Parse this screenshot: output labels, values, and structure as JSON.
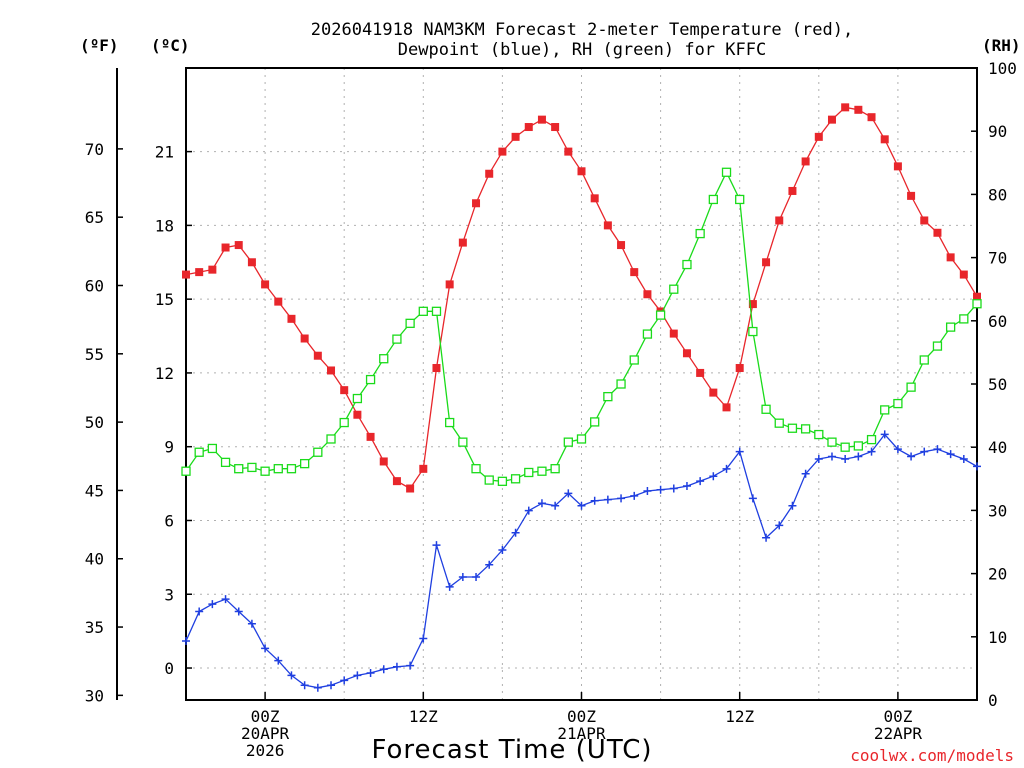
{
  "chart_data": {
    "type": "line",
    "title": "2026041918 NAM3KM Forecast 2-meter Temperature (red), Dewpoint (blue), RH (green) for KFFC",
    "title_lines": [
      "2026041918 NAM3KM Forecast 2-meter Temperature (red),",
      "Dewpoint (blue), RH (green) for KFFC"
    ],
    "xlabel": "Forecast Time (UTC)",
    "credit": "coolwx.com/models",
    "units": {
      "fahrenheit": "(ºF)",
      "celsius": "(ºC)",
      "rh": "(RH)"
    },
    "x_unit": "forecast hour (0 = 2026041918 UTC)",
    "xlim": [
      0,
      60
    ],
    "x_ticks": [
      {
        "x": 6,
        "lines": [
          "00Z",
          "20APR",
          "2026"
        ]
      },
      {
        "x": 18,
        "lines": [
          "12Z"
        ]
      },
      {
        "x": 30,
        "lines": [
          "00Z",
          "21APR"
        ]
      },
      {
        "x": 42,
        "lines": [
          "12Z"
        ]
      },
      {
        "x": 54,
        "lines": [
          "00Z",
          "22APR"
        ]
      }
    ],
    "x_grid": [
      6,
      12,
      18,
      24,
      30,
      36,
      42,
      48,
      54
    ],
    "celsius_axis": {
      "min": -1.3,
      "max": 24.4,
      "ticks": [
        0,
        3,
        6,
        9,
        12,
        15,
        18,
        21
      ]
    },
    "fahrenheit_axis": {
      "ticks": [
        30,
        35,
        40,
        45,
        50,
        55,
        60,
        65,
        70
      ]
    },
    "rh_axis": {
      "min": 0,
      "max": 100,
      "ticks": [
        0,
        10,
        20,
        30,
        40,
        50,
        60,
        70,
        80,
        90,
        100
      ]
    },
    "grid": true,
    "series": [
      {
        "name": "2-meter Temperature",
        "axis": "celsius",
        "color": "#e8262b",
        "marker": "filled-square",
        "x": [
          0,
          1,
          2,
          3,
          4,
          5,
          6,
          7,
          8,
          9,
          10,
          11,
          12,
          13,
          14,
          15,
          16,
          17,
          18,
          19,
          20,
          21,
          22,
          23,
          24,
          25,
          26,
          27,
          28,
          29,
          30,
          31,
          32,
          33,
          34,
          35,
          36,
          37,
          38,
          39,
          40,
          41,
          42,
          43,
          44,
          45,
          46,
          47,
          48,
          49,
          50,
          51,
          52,
          53,
          54,
          55,
          56,
          57,
          58,
          59,
          60
        ],
        "values": [
          16.0,
          16.1,
          16.2,
          17.1,
          17.2,
          16.5,
          15.6,
          14.9,
          14.2,
          13.4,
          12.7,
          12.1,
          11.3,
          10.3,
          9.4,
          8.4,
          7.6,
          7.3,
          8.1,
          12.2,
          15.6,
          17.3,
          18.9,
          20.1,
          21.0,
          21.6,
          22.0,
          22.3,
          22.0,
          21.0,
          20.2,
          19.1,
          18.0,
          17.2,
          16.1,
          15.2,
          14.5,
          13.6,
          12.8,
          12.0,
          11.2,
          10.6,
          12.2,
          14.8,
          16.5,
          18.2,
          19.4,
          20.6,
          21.6,
          22.3,
          22.8,
          22.7,
          22.4,
          21.5,
          20.4,
          19.2,
          18.2,
          17.7,
          16.7,
          16.0,
          15.1
        ]
      },
      {
        "name": "Dewpoint",
        "axis": "celsius",
        "color": "#1f3fe0",
        "marker": "plus",
        "x": [
          0,
          1,
          2,
          3,
          4,
          5,
          6,
          7,
          8,
          9,
          10,
          11,
          12,
          13,
          14,
          15,
          16,
          17,
          18,
          19,
          20,
          21,
          22,
          23,
          24,
          25,
          26,
          27,
          28,
          29,
          30,
          31,
          32,
          33,
          34,
          35,
          36,
          37,
          38,
          39,
          40,
          41,
          42,
          43,
          44,
          45,
          46,
          47,
          48,
          49,
          50,
          51,
          52,
          53,
          54,
          55,
          56,
          57,
          58,
          59,
          60
        ],
        "values": [
          1.1,
          2.3,
          2.6,
          2.8,
          2.3,
          1.8,
          0.8,
          0.3,
          -0.3,
          -0.7,
          -0.8,
          -0.7,
          -0.5,
          -0.3,
          -0.2,
          -0.05,
          0.05,
          0.1,
          1.2,
          5.0,
          3.3,
          3.7,
          3.7,
          4.2,
          4.8,
          5.5,
          6.4,
          6.7,
          6.6,
          7.1,
          6.6,
          6.8,
          6.85,
          6.9,
          7.0,
          7.2,
          7.25,
          7.3,
          7.4,
          7.6,
          7.8,
          8.1,
          8.8,
          6.9,
          5.3,
          5.8,
          6.6,
          7.9,
          8.5,
          8.6,
          8.5,
          8.6,
          8.8,
          9.5,
          8.9,
          8.6,
          8.8,
          8.9,
          8.7,
          8.5,
          8.2
        ]
      },
      {
        "name": "RH",
        "axis": "rh",
        "color": "#1adb1a",
        "marker": "open-square",
        "x": [
          0,
          1,
          2,
          3,
          4,
          5,
          6,
          7,
          8,
          9,
          10,
          11,
          12,
          13,
          14,
          15,
          16,
          17,
          18,
          19,
          20,
          21,
          22,
          23,
          24,
          25,
          26,
          27,
          28,
          29,
          30,
          31,
          32,
          33,
          34,
          35,
          36,
          37,
          38,
          39,
          40,
          41,
          42,
          43,
          44,
          45,
          46,
          47,
          48,
          49,
          50,
          51,
          52,
          53,
          54,
          55,
          56,
          57,
          58,
          59,
          60
        ],
        "values": [
          36.2,
          39.2,
          39.8,
          37.6,
          36.6,
          36.8,
          36.2,
          36.6,
          36.6,
          37.4,
          39.2,
          41.3,
          43.9,
          47.7,
          50.7,
          54.0,
          57.1,
          59.6,
          61.5,
          61.5,
          43.9,
          40.8,
          36.6,
          34.8,
          34.6,
          35.0,
          36.0,
          36.2,
          36.6,
          40.8,
          41.3,
          44.0,
          48.0,
          50.0,
          53.8,
          57.9,
          60.9,
          65.0,
          68.9,
          73.8,
          79.2,
          83.5,
          79.2,
          58.3,
          46.0,
          43.8,
          43.0,
          42.9,
          42.0,
          40.8,
          40.0,
          40.2,
          41.2,
          45.9,
          46.9,
          49.5,
          53.8,
          56.0,
          59.0,
          60.3,
          62.7
        ]
      }
    ]
  }
}
